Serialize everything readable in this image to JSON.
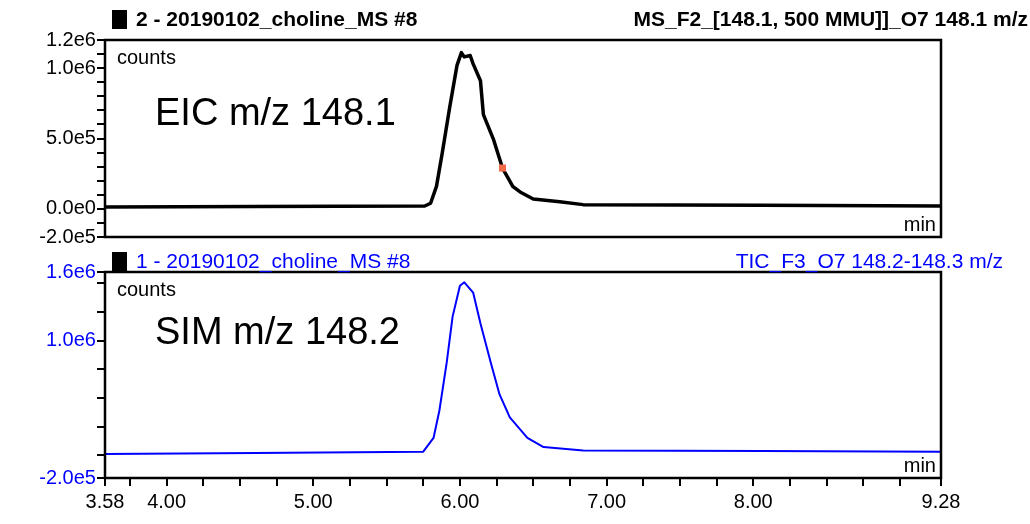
{
  "chart_data": [
    {
      "type": "line",
      "title": "2 - 20190102_choline_MS #8",
      "subtitle": "MS_F2_[148.1, 500 MMU]]_O7 148.1 m/z",
      "xlabel": "min",
      "ylabel": "counts",
      "annotations": [
        "EIC m/z 148.1"
      ],
      "xlim": [
        3.58,
        9.28
      ],
      "ylim": [
        -200000,
        1200000
      ],
      "yticks": [
        {
          "value": -200000,
          "label": "-2.0e5"
        },
        {
          "value": -100000,
          "label": null
        },
        {
          "value": 0,
          "label": "0.0e0"
        },
        {
          "value": 100000,
          "label": null
        },
        {
          "value": 200000,
          "label": null
        },
        {
          "value": 300000,
          "label": null
        },
        {
          "value": 400000,
          "label": null
        },
        {
          "value": 500000,
          "label": "5.0e5"
        },
        {
          "value": 600000,
          "label": null
        },
        {
          "value": 700000,
          "label": null
        },
        {
          "value": 800000,
          "label": null
        },
        {
          "value": 900000,
          "label": null
        },
        {
          "value": 1000000,
          "label": "1.0e6"
        },
        {
          "value": 1100000,
          "label": null
        },
        {
          "value": 1200000,
          "label": "1.2e6"
        }
      ],
      "tick_labels": "y",
      "marker": "none",
      "series": [
        {
          "color": "#000000",
          "x": [
            3.58,
            5.76,
            5.8,
            5.84,
            5.88,
            5.93,
            5.98,
            6.01,
            6.03,
            6.07,
            6.09,
            6.14,
            6.16,
            6.23,
            6.29,
            6.36,
            6.41,
            6.5,
            6.68,
            6.84,
            9.28
          ],
          "values": [
            14000,
            20000,
            40000,
            160000,
            400000,
            720000,
            1020000,
            1110000,
            1080000,
            1090000,
            1030000,
            910000,
            670000,
            490000,
            290000,
            160000,
            120000,
            70000,
            50000,
            30000,
            20000
          ]
        },
        {
          "type": "scatter",
          "marker": "square",
          "color": "#f26b4b",
          "x": [
            6.29
          ],
          "values": [
            290000
          ]
        }
      ]
    },
    {
      "type": "line",
      "title": "1 - 20190102_choline_MS #8",
      "subtitle": "TIC_F3_O7 148.2-148.3 m/z",
      "xlabel": "min",
      "ylabel": "counts",
      "annotations": [
        "SIM m/z 148.2"
      ],
      "xlim": [
        3.58,
        9.28
      ],
      "xticks": [
        {
          "value": 3.58,
          "label": "3.58"
        },
        {
          "value": 3.75,
          "label": null
        },
        {
          "value": 4,
          "label": "4.00"
        },
        {
          "value": 4.25,
          "label": null
        },
        {
          "value": 4.5,
          "label": null
        },
        {
          "value": 4.75,
          "label": null
        },
        {
          "value": 5,
          "label": "5.00"
        },
        {
          "value": 5.25,
          "label": null
        },
        {
          "value": 5.5,
          "label": null
        },
        {
          "value": 5.75,
          "label": null
        },
        {
          "value": 6,
          "label": "6.00"
        },
        {
          "value": 6.25,
          "label": null
        },
        {
          "value": 6.5,
          "label": null
        },
        {
          "value": 6.75,
          "label": null
        },
        {
          "value": 7,
          "label": "7.00"
        },
        {
          "value": 7.25,
          "label": null
        },
        {
          "value": 7.5,
          "label": null
        },
        {
          "value": 7.75,
          "label": null
        },
        {
          "value": 8,
          "label": "8.00"
        },
        {
          "value": 8.25,
          "label": null
        },
        {
          "value": 8.5,
          "label": null
        },
        {
          "value": 8.75,
          "label": null
        },
        {
          "value": 9,
          "label": null
        },
        {
          "value": 9.28,
          "label": "9.28"
        }
      ],
      "ylim": [
        -200000,
        1600000
      ],
      "yticks": [
        {
          "value": -200000,
          "label": "-2.0e5"
        },
        {
          "value": 0,
          "label": null
        },
        {
          "value": 250000,
          "label": null
        },
        {
          "value": 500000,
          "label": null
        },
        {
          "value": 750000,
          "label": null
        },
        {
          "value": 1000000,
          "label": "1.0e6"
        },
        {
          "value": 1250000,
          "label": null
        },
        {
          "value": 1500000,
          "label": null
        },
        {
          "value": 1600000,
          "label": "1.6e6"
        }
      ],
      "marker": "none",
      "series": [
        {
          "color": "#0000ff",
          "x": [
            3.58,
            5.75,
            5.82,
            5.86,
            5.91,
            5.95,
            6.0,
            6.03,
            6.09,
            6.14,
            6.21,
            6.27,
            6.34,
            6.46,
            6.57,
            6.84,
            9.28
          ],
          "values": [
            10000,
            30000,
            150000,
            390000,
            810000,
            1210000,
            1480000,
            1510000,
            1420000,
            1150000,
            810000,
            530000,
            330000,
            150000,
            70000,
            40000,
            30000
          ]
        }
      ]
    }
  ]
}
